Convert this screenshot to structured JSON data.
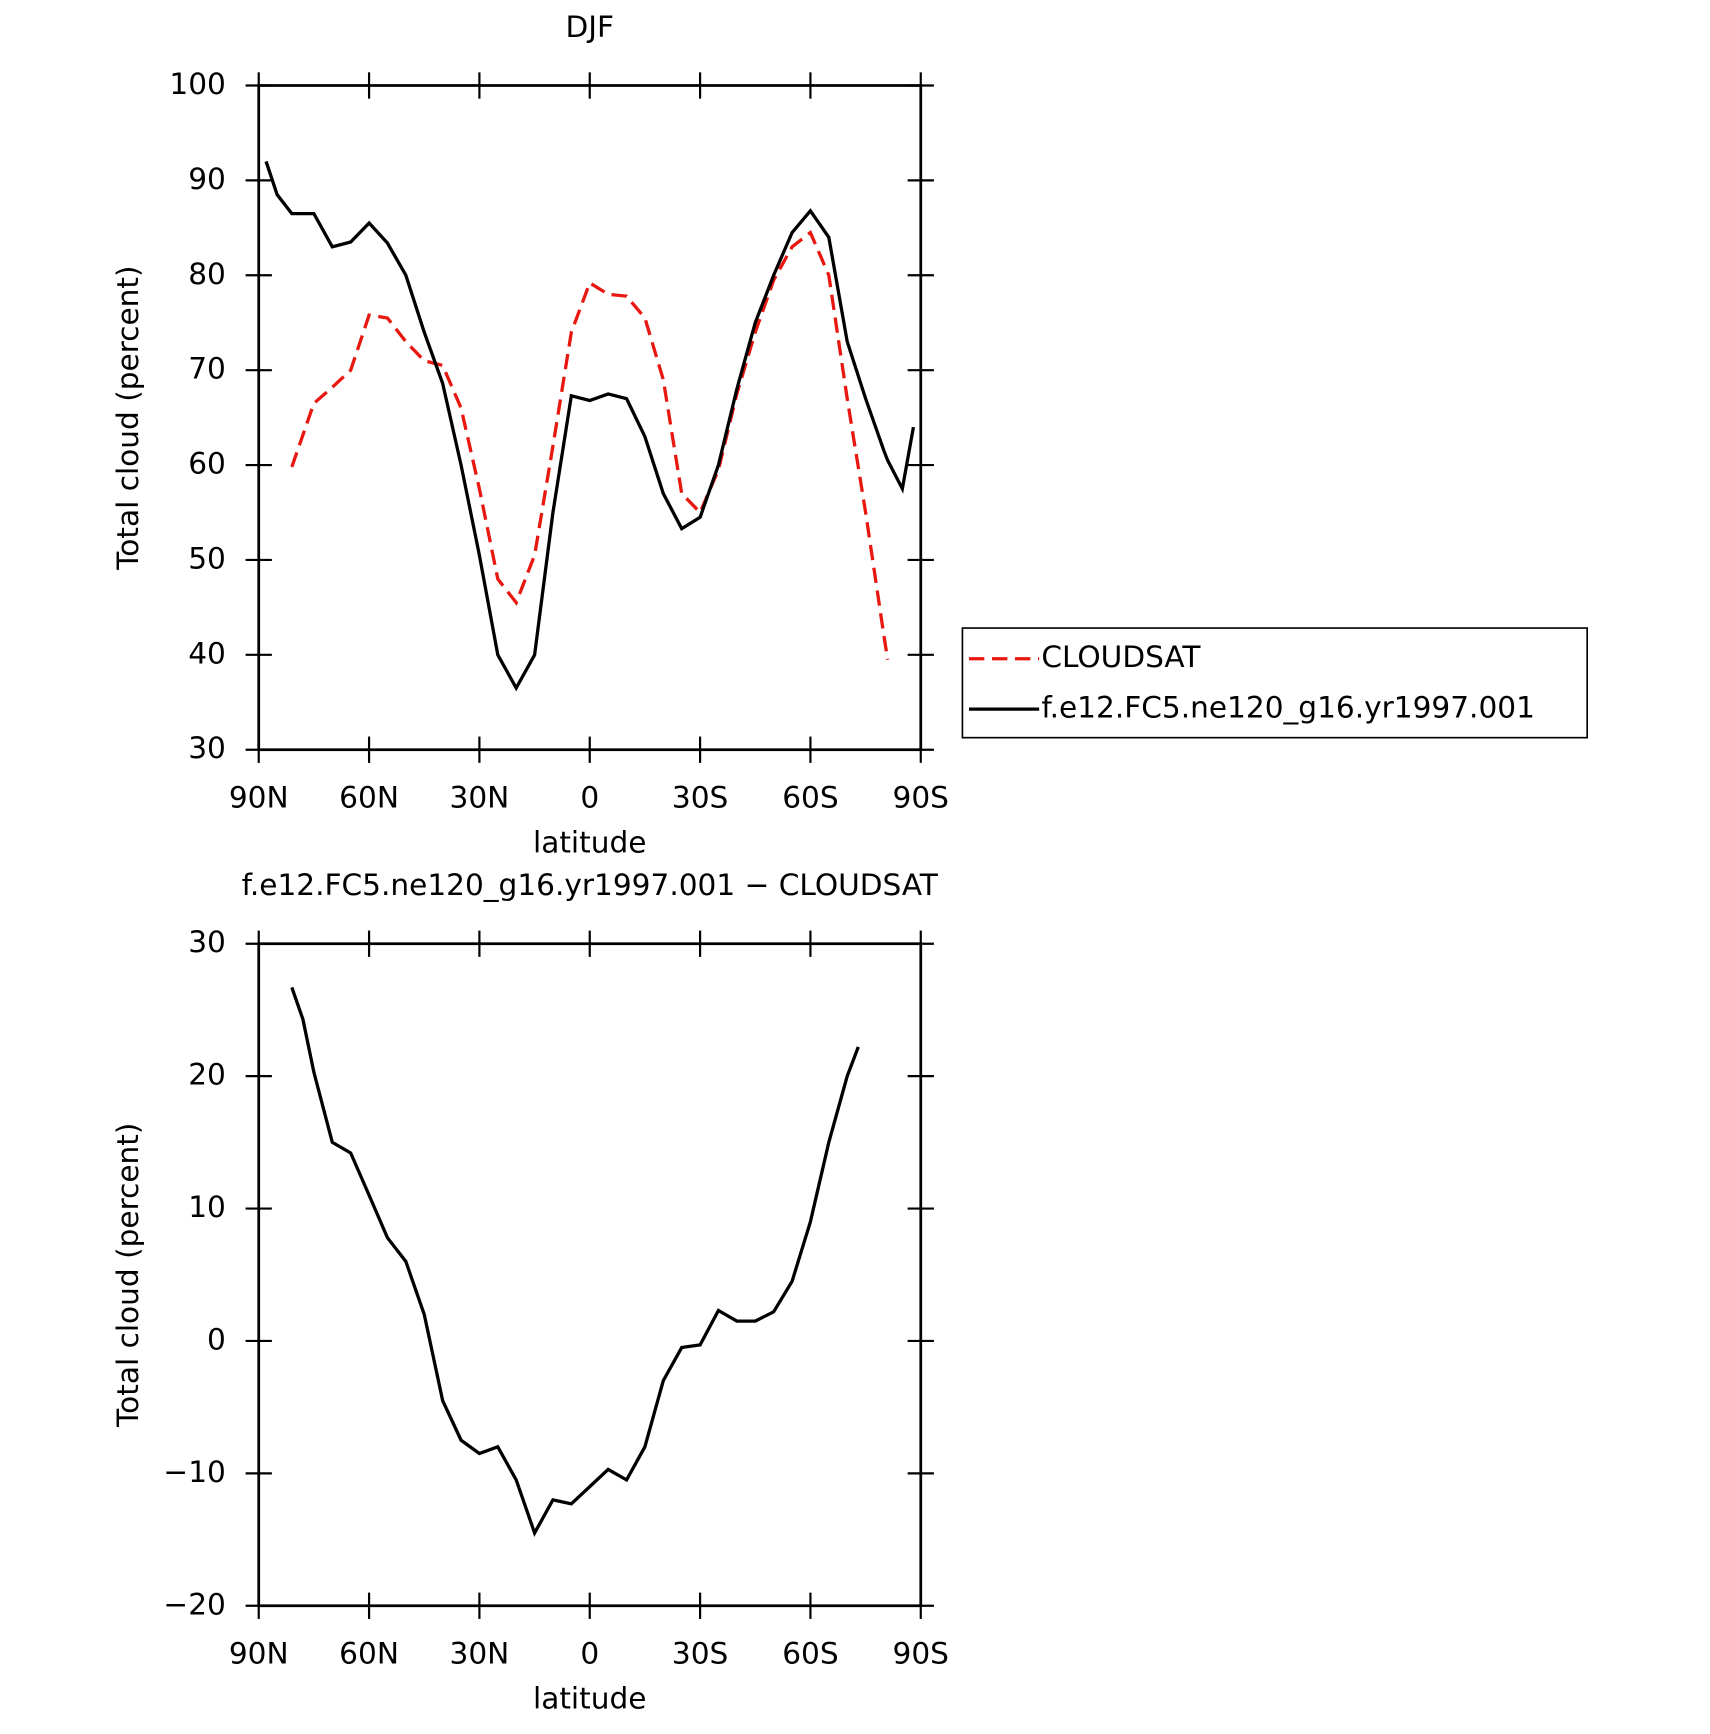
{
  "chart_data": [
    {
      "type": "line",
      "title": "DJF",
      "xlabel": "latitude",
      "ylabel": "Total cloud (percent)",
      "x": [
        88,
        85,
        81,
        75,
        70,
        65,
        60,
        55,
        50,
        45,
        40,
        35,
        30,
        25,
        20,
        15,
        10,
        5,
        0,
        -5,
        -10,
        -15,
        -20,
        -25,
        -30,
        -35,
        -40,
        -45,
        -50,
        -55,
        -60,
        -65,
        -70,
        -75,
        -80,
        -81,
        -85,
        -88
      ],
      "series": [
        {
          "name": "CLOUDSAT",
          "color": "#e8170f",
          "line_style": "dashed",
          "values": [
            null,
            null,
            59.8,
            66.5,
            68.2,
            70,
            75.8,
            75.5,
            73,
            71,
            70.5,
            66,
            57.5,
            48,
            45.5,
            50.5,
            62,
            74,
            79.2,
            78,
            77.8,
            75.5,
            69,
            57,
            55,
            59.5,
            67.5,
            74,
            79.5,
            83,
            84.5,
            80,
            67,
            55,
            42,
            39.5,
            null,
            null
          ]
        },
        {
          "name": "f.e12.FC5.ne120_g16.yr1997.001",
          "color": "#000000",
          "line_style": "solid",
          "values": [
            92,
            88.5,
            86.5,
            86.5,
            83,
            83.5,
            85.5,
            83.4,
            80,
            74,
            68.6,
            60,
            50.5,
            40,
            36.5,
            40,
            55,
            67.3,
            66.8,
            67.5,
            67,
            63,
            57,
            53.3,
            54.5,
            60,
            68,
            75,
            80,
            84.5,
            86.8,
            84,
            73,
            67,
            61.5,
            60.5,
            57.5,
            64
          ]
        }
      ],
      "xlim": [
        90,
        -90
      ],
      "ylim": [
        30,
        100
      ],
      "xticks": [
        {
          "value": 90,
          "label": "90N"
        },
        {
          "value": 60,
          "label": "60N"
        },
        {
          "value": 30,
          "label": "30N"
        },
        0,
        {
          "value": -30,
          "label": "30S"
        },
        {
          "value": -60,
          "label": "60S"
        },
        {
          "value": -90,
          "label": "90S"
        }
      ],
      "yticks": [
        30,
        40,
        50,
        60,
        70,
        80,
        90,
        100
      ],
      "legend": "right"
    },
    {
      "type": "line",
      "title": "f.e12.FC5.ne120_g16.yr1997.001 − CLOUDSAT",
      "xlabel": "latitude",
      "ylabel": "Total cloud (percent)",
      "x": [
        81,
        78,
        75,
        70,
        65,
        60,
        55,
        50,
        45,
        40,
        35,
        30,
        25,
        20,
        15,
        10,
        5,
        0,
        -5,
        -10,
        -15,
        -20,
        -25,
        -30,
        -35,
        -40,
        -45,
        -50,
        -55,
        -60,
        -65,
        -70,
        -73
      ],
      "series": [
        {
          "color": "#000000",
          "line_style": "solid",
          "values": [
            26.7,
            24.3,
            20.3,
            15,
            14.2,
            11,
            7.8,
            6,
            2,
            -4.5,
            -7.5,
            -8.5,
            -8,
            -10.5,
            -14.5,
            -12,
            -12.3,
            -11,
            -9.7,
            -10.5,
            -8,
            -3,
            -0.5,
            -0.3,
            2.3,
            1.5,
            1.5,
            2.2,
            4.5,
            9,
            15,
            20,
            22.2
          ]
        }
      ],
      "xlim": [
        90,
        -90
      ],
      "ylim": [
        -20,
        30
      ],
      "xticks": [
        {
          "value": 90,
          "label": "90N"
        },
        {
          "value": 60,
          "label": "60N"
        },
        {
          "value": 30,
          "label": "30N"
        },
        0,
        {
          "value": -30,
          "label": "30S"
        },
        {
          "value": -60,
          "label": "60S"
        },
        {
          "value": -90,
          "label": "90S"
        }
      ],
      "yticks": [
        {
          "value": -20,
          "label": "−20"
        },
        {
          "value": -10,
          "label": "−10"
        },
        0,
        10,
        20,
        30
      ]
    }
  ]
}
